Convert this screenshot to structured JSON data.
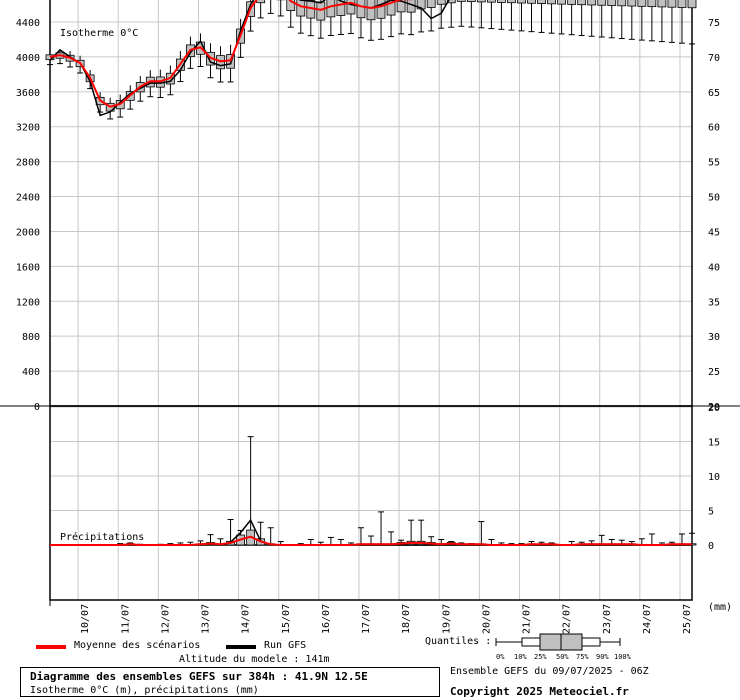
{
  "chart_data": [
    {
      "type": "box",
      "name": "isotherm",
      "panel_label": "Isotherme 0°C",
      "x_ticks": [
        "10/07",
        "11/07",
        "12/07",
        "13/07",
        "14/07",
        "15/07",
        "16/07",
        "17/07",
        "18/07",
        "19/07",
        "20/07",
        "21/07",
        "22/07",
        "23/07",
        "24/07",
        "25/07"
      ],
      "xlim": [
        "09/07 06Z",
        "25/07 06Z"
      ],
      "ylim_left": [
        0,
        4600
      ],
      "yticks_left": [
        0,
        400,
        800,
        1200,
        1600,
        2000,
        2400,
        2800,
        3200,
        3600,
        4000,
        4400
      ],
      "yticks_right": [
        20,
        25,
        30,
        35,
        40,
        45,
        50,
        55,
        60,
        65,
        70,
        75
      ],
      "grid": true,
      "step_hours": 6,
      "mean_series": [
        4000,
        4020,
        3990,
        3930,
        3760,
        3500,
        3430,
        3460,
        3560,
        3660,
        3720,
        3720,
        3760,
        3920,
        4080,
        4110,
        3990,
        3950,
        3960,
        4250,
        4560,
        4720,
        4780,
        4760,
        4640,
        4580,
        4560,
        4540,
        4580,
        4600,
        4620,
        4580,
        4560,
        4580,
        4620,
        4660,
        4660,
        4700,
        4720,
        4760,
        4780,
        4800,
        4800,
        4800,
        4800,
        4800,
        4800,
        4800,
        4800,
        4800,
        4800,
        4800,
        4800,
        4800,
        4800,
        4800,
        4800,
        4800,
        4800,
        4800,
        4800,
        4800,
        4800,
        4800,
        4800
      ],
      "run_series": [
        3960,
        4080,
        4000,
        3930,
        3720,
        3330,
        3370,
        3480,
        3580,
        3640,
        3700,
        3700,
        3720,
        3850,
        4050,
        4180,
        3940,
        3900,
        3920,
        4300,
        4600,
        4780,
        4800,
        4800,
        4700,
        4650,
        4640,
        4620,
        4700,
        4640,
        4600,
        4580,
        4560,
        4600,
        4650,
        4640,
        4600,
        4560,
        4440,
        4500,
        4700,
        4800,
        4800,
        4800,
        4800,
        4800,
        4800,
        4800,
        4800,
        4800,
        4800,
        4800,
        4800,
        4800,
        4800,
        4800,
        4800,
        4800,
        4800,
        4800,
        4800,
        4800,
        4800,
        4800,
        4800
      ]
    },
    {
      "type": "box",
      "name": "precipitation",
      "panel_label": "Précipitations",
      "ylim": [
        -8,
        20
      ],
      "yticks": [
        0,
        5,
        10,
        15,
        20
      ],
      "step_hours": 6,
      "mean_series": [
        0,
        0,
        0,
        0,
        0,
        0,
        0,
        0,
        0.1,
        0,
        0,
        0,
        0,
        0,
        0,
        0.1,
        0.2,
        0.1,
        0.3,
        0.8,
        1.2,
        0.5,
        0.1,
        0,
        0,
        0,
        0,
        0,
        0,
        0,
        0,
        0.1,
        0.1,
        0.1,
        0.1,
        0.2,
        0.3,
        0.3,
        0.2,
        0.1,
        0.2,
        0.1,
        0.1,
        0.1,
        0,
        0,
        0,
        0,
        0.1,
        0.1,
        0.1,
        0,
        0,
        0.1,
        0.1,
        0.1,
        0.1,
        0.1,
        0.1,
        0,
        0,
        0,
        0.1,
        0.1,
        0.1
      ],
      "run_series": [
        0,
        0,
        0,
        0,
        0,
        0,
        0,
        0,
        0,
        0,
        0,
        0,
        0,
        0,
        0,
        0,
        0.1,
        0,
        0.4,
        1.8,
        3.6,
        0.6,
        0,
        0,
        0,
        0,
        0,
        0,
        0,
        0,
        0,
        0,
        0,
        0,
        0,
        0,
        0,
        0,
        0,
        0,
        0,
        0,
        0,
        0,
        0,
        0,
        0,
        0,
        0,
        0,
        0,
        0,
        0,
        0,
        0,
        0,
        0,
        0,
        0,
        0,
        0,
        0,
        0,
        0,
        0
      ],
      "max_series": [
        0,
        0,
        0,
        0,
        0,
        0,
        0,
        0.2,
        0.3,
        0.1,
        0,
        0.1,
        0.2,
        0.3,
        0.4,
        0.6,
        1.5,
        0.9,
        3.7,
        2.1,
        15.7,
        3.3,
        2.5,
        0.5,
        0,
        0.2,
        0.8,
        0.4,
        1.1,
        0.8,
        0.3,
        2.5,
        1.3,
        4.8,
        1.9,
        0.7,
        3.6,
        3.6,
        1.2,
        0.8,
        0.5,
        0.3,
        0.2,
        3.4,
        0.8,
        0.3,
        0.2,
        0.2,
        0.5,
        0.4,
        0.3,
        0,
        0.5,
        0.4,
        0.6,
        1.4,
        0.8,
        0.7,
        0.5,
        0.9,
        1.6,
        0.3,
        0.4,
        1.6,
        1.7
      ],
      "units": "(mm)"
    }
  ],
  "legend": {
    "mean_label": "Moyenne des scénarios",
    "mean_color": "#ff0000",
    "run_label": "Run GFS",
    "run_color": "#000000",
    "quantiles_label": "Quantiles :",
    "quantile_ticks": [
      "0%",
      "10%",
      "25%",
      "50%",
      "75%",
      "90%",
      "100%"
    ]
  },
  "model_altitude": "Altitude du modele : 141m",
  "title": "Diagramme des ensembles GEFS sur 384h : 41.9N 12.5E",
  "subtitle": "Isotherme 0°C (m), précipitations (mm)",
  "ensemble_run": "Ensemble GEFS du 09/07/2025 - 06Z",
  "copyright": "Copyright 2025 Meteociel.fr",
  "colors": {
    "grid": "#c8c8c8",
    "box_fill": "#c0c0c0",
    "axis": "#000000"
  }
}
